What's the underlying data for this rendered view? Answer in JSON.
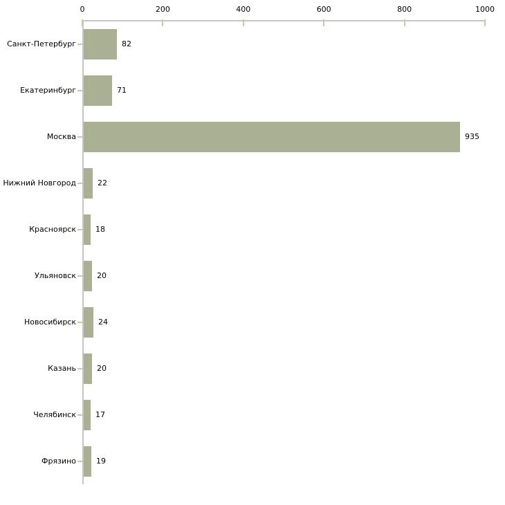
{
  "chart_data": {
    "type": "bar",
    "orientation": "horizontal",
    "title": "",
    "xlabel": "",
    "ylabel": "",
    "categories": [
      "Санкт-Петербург",
      "Екатеринбург",
      "Москва",
      "Нижний Новгород",
      "Красноярск",
      "Ульяновск",
      "Новосибирск",
      "Казань",
      "Челябинск",
      "Фрязино"
    ],
    "values": [
      82,
      71,
      935,
      22,
      18,
      20,
      24,
      20,
      17,
      19
    ],
    "value_labels": [
      "82",
      "71",
      "935",
      "22",
      "18",
      "20",
      "24",
      "20",
      "17",
      "19"
    ],
    "xlim": [
      0,
      1000
    ],
    "x_ticks": [
      0,
      200,
      400,
      600,
      800,
      1000
    ],
    "x_tick_labels": [
      "0",
      "200",
      "400",
      "600",
      "800",
      "1000"
    ],
    "grid": false,
    "legend": "none",
    "axis_position": "top",
    "colors": {
      "bar": "#aab094",
      "axis_line": "#c6c6c6",
      "tick_mark": "#c9caa4",
      "text": "#000000",
      "background": "#ffffff"
    }
  }
}
